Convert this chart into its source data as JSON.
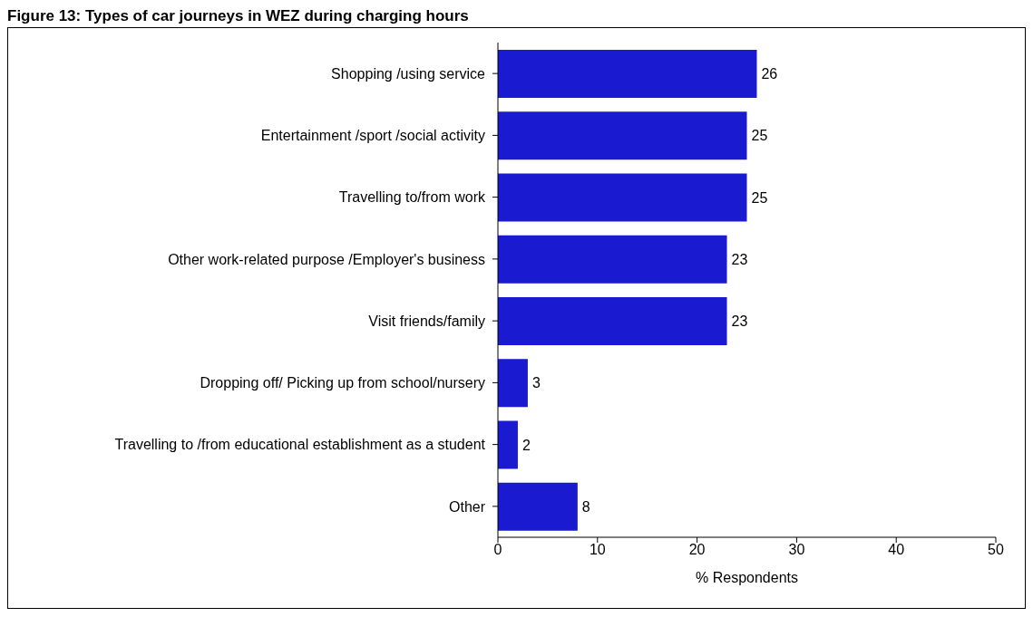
{
  "chart_data": {
    "type": "bar",
    "orientation": "horizontal",
    "title": "Figure 13: Types of car journeys in WEZ during charging hours",
    "categories": [
      "Shopping /using service",
      "Entertainment /sport /social activity",
      "Travelling to/from work",
      "Other work-related purpose /Employer's business",
      "Visit friends/family",
      "Dropping off/ Picking up from school/nursery",
      "Travelling to /from educational establishment as a student",
      "Other"
    ],
    "values": [
      26,
      25,
      25,
      23,
      23,
      3,
      2,
      8
    ],
    "color": "#1a1ad0",
    "xlim": [
      0,
      50
    ],
    "xticks": [
      0,
      10,
      20,
      30,
      40,
      50
    ],
    "xlabel": "% Respondents",
    "data_labels": true,
    "grid": false,
    "legend": false
  }
}
